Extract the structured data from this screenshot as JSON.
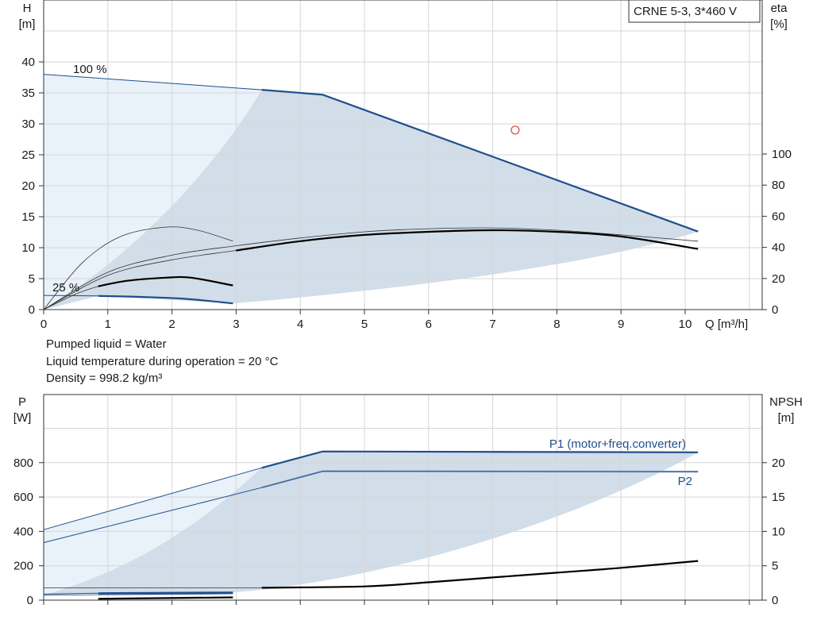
{
  "chart_data": [
    {
      "type": "line",
      "title": "CRNE 5-3, 3*460 V",
      "xlabel": "Q [m³/h]",
      "ylabel_left": [
        "H",
        "[m]"
      ],
      "ylabel_right": [
        "eta",
        "[%]"
      ],
      "xlim": [
        0,
        11
      ],
      "ylim": [
        0,
        45
      ],
      "y2lim": [
        0,
        100
      ],
      "x_ticks": [
        "0",
        "1",
        "2",
        "3",
        "4",
        "5",
        "6",
        "7",
        "8",
        "9",
        "10"
      ],
      "y_ticks": [
        "0",
        "5",
        "10",
        "15",
        "20",
        "25",
        "30",
        "35",
        "40"
      ],
      "y2_ticks": [
        "0",
        "20",
        "40",
        "60",
        "80",
        "100"
      ],
      "curve_labels": [
        "100 %",
        "25 %"
      ],
      "grid": true,
      "colors": {
        "main": "#1f4e8c",
        "black": "#000000",
        "region_dark": "#d1dde8",
        "region_light": "#e9f1f9",
        "grid": "#d6d6d6",
        "duty_point": "#e64040"
      },
      "series": [
        {
          "role": "H_max_100",
          "values": [
            [
              0,
              38
            ],
            [
              3.4,
              35.5
            ],
            [
              4.35,
              34.7
            ],
            [
              10.2,
              12.6
            ]
          ]
        },
        {
          "role": "H_min_25",
          "values": [
            [
              0.85,
              2.2
            ],
            [
              1.5,
              2.05
            ],
            [
              2.2,
              1.75
            ],
            [
              2.95,
              1.0
            ]
          ]
        },
        {
          "role": "eta_max",
          "values": [
            [
              0,
              0
            ],
            [
              1,
              22
            ],
            [
              2,
              32
            ],
            [
              3,
              38
            ],
            [
              4,
              44
            ],
            [
              5,
              48
            ],
            [
              6,
              50
            ],
            [
              7,
              51
            ],
            [
              8,
              50
            ],
            [
              9,
              47
            ],
            [
              10.2,
              39
            ]
          ]
        },
        {
          "role": "eta_min",
          "values": [
            [
              0.85,
              15
            ],
            [
              1.3,
              18.5
            ],
            [
              1.9,
              20.5
            ],
            [
              2.3,
              20.5
            ],
            [
              2.95,
              15.5
            ]
          ]
        },
        {
          "role": "eta_thin_a",
          "values": [
            [
              0,
              0
            ],
            [
              1,
              24
            ],
            [
              2,
              35
            ],
            [
              3,
              41
            ],
            [
              4,
              46
            ],
            [
              5,
              50
            ],
            [
              6,
              52
            ],
            [
              7,
              52.5
            ],
            [
              8,
              51
            ],
            [
              9,
              48
            ],
            [
              10.2,
              44
            ]
          ]
        },
        {
          "role": "eta_thin_b",
          "values": [
            [
              0,
              0
            ],
            [
              0.6,
              30
            ],
            [
              1.2,
              47
            ],
            [
              1.9,
              53
            ],
            [
              2.4,
              51
            ],
            [
              2.95,
              44
            ]
          ]
        }
      ],
      "duty_point": {
        "x": 7.35,
        "y": 29
      }
    },
    {
      "type": "line",
      "xlabel": "",
      "ylabel_left": [
        "P",
        "[W]"
      ],
      "ylabel_right": [
        "NPSH",
        "[m]"
      ],
      "xlim": [
        0,
        11
      ],
      "ylim": [
        0,
        1000
      ],
      "y2lim": [
        0,
        25
      ],
      "y_ticks": [
        "0",
        "200",
        "400",
        "600",
        "800"
      ],
      "y2_ticks": [
        "0",
        "5",
        "10",
        "15",
        "20"
      ],
      "series": [
        {
          "name": "P1 (motor+freq.converter)",
          "values": [
            [
              0,
              410
            ],
            [
              3.4,
              770
            ],
            [
              4.35,
              865
            ],
            [
              10.2,
              860
            ]
          ]
        },
        {
          "name": "P2",
          "values": [
            [
              0,
              335
            ],
            [
              3.4,
              655
            ],
            [
              4.35,
              750
            ],
            [
              10.2,
              748
            ]
          ]
        },
        {
          "role": "P1_min",
          "values": [
            [
              0.85,
              40
            ],
            [
              2.95,
              45
            ]
          ]
        },
        {
          "role": "P2_min",
          "values": [
            [
              0.85,
              32
            ],
            [
              2.95,
              38
            ]
          ]
        },
        {
          "role": "NPSH",
          "values": [
            [
              3.4,
              1.8
            ],
            [
              5,
              2.0
            ],
            [
              6,
              2.6
            ],
            [
              7,
              3.3
            ],
            [
              8,
              4.0
            ],
            [
              9,
              4.7
            ],
            [
              10.2,
              5.7
            ]
          ]
        },
        {
          "role": "NPSH_low",
          "values": [
            [
              0.85,
              0.2
            ],
            [
              2.95,
              0.4
            ]
          ]
        }
      ]
    }
  ],
  "notes": [
    "Pumped liquid = Water",
    "Liquid temperature during operation = 20 °C",
    "Density = 998.2 kg/m³"
  ]
}
